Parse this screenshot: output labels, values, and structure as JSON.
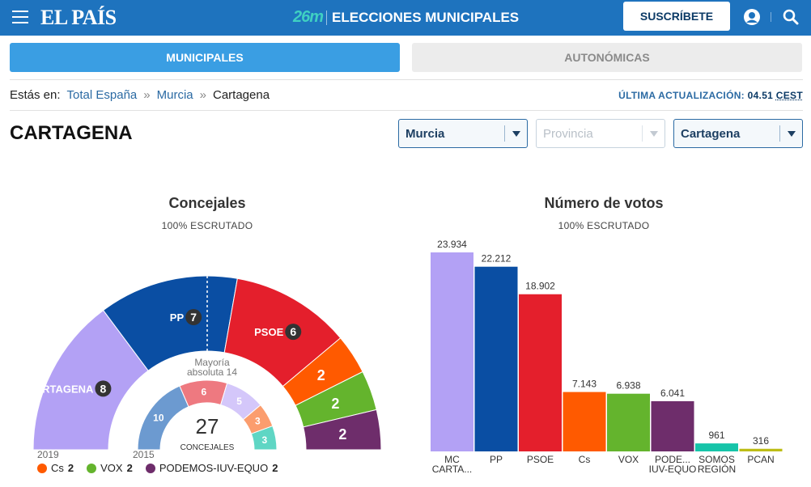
{
  "header": {
    "logo": "EL PAÍS",
    "brand_mark": "26m",
    "title": "ELECCIONES MUNICIPALES",
    "subscribe_label": "SUSCRÍBETE"
  },
  "tabs": [
    {
      "label": "MUNICIPALES",
      "active": true
    },
    {
      "label": "AUTONÓMICAS",
      "active": false
    }
  ],
  "breadcrumb": {
    "prefix": "Estás en:",
    "items": [
      "Total España",
      "Murcia",
      "Cartagena"
    ],
    "separator": "»"
  },
  "update": {
    "label": "ÚLTIMA ACTUALIZACIÓN:",
    "time": "04.51",
    "tz": "CEST"
  },
  "page_title": "CARTAGENA",
  "selects": [
    {
      "value": "Murcia",
      "disabled": false
    },
    {
      "value": "",
      "placeholder": "Provincia",
      "disabled": true
    },
    {
      "value": "Cartagena",
      "disabled": false
    }
  ],
  "concejales": {
    "title": "Concejales",
    "subtitle": "100% ESCRUTADO",
    "majority_line1": "Mayoría",
    "majority_line2": "absoluta 14",
    "total": "27",
    "total_label": "CONCEJALES",
    "year_outer": "2019",
    "year_inner": "2015"
  },
  "votos": {
    "title": "Número de votos",
    "subtitle": "100% ESCRUTADO"
  },
  "legend": [
    {
      "name": "Cs",
      "value": "2",
      "color": "#ff5a00"
    },
    {
      "name": "VOX",
      "value": "2",
      "color": "#64b42d"
    },
    {
      "name": "PODEMOS-IUV-EQUO",
      "value": "2",
      "color": "#6e2d6b"
    }
  ],
  "chart_data": [
    {
      "type": "pie",
      "subtype": "half-donut",
      "title": "Concejales",
      "series": [
        {
          "name": "2019",
          "slices": [
            {
              "party": "MC CARTAGENA",
              "seats": 8,
              "color": "#b3a1f5"
            },
            {
              "party": "PP",
              "seats": 7,
              "color": "#0a4ea3"
            },
            {
              "party": "PSOE",
              "seats": 6,
              "color": "#e41f2c"
            },
            {
              "party": "Cs",
              "seats": 2,
              "color": "#ff5a00"
            },
            {
              "party": "VOX",
              "seats": 2,
              "color": "#64b42d"
            },
            {
              "party": "PODEMOS-IUV-EQUO",
              "seats": 2,
              "color": "#6e2d6b"
            }
          ]
        },
        {
          "name": "2015",
          "slices": [
            {
              "party": "PP",
              "seats": 10,
              "color": "#6c9ad0"
            },
            {
              "party": "PSOE",
              "seats": 6,
              "color": "#ee7980"
            },
            {
              "party": "MC CARTAGENA",
              "seats": 5,
              "color": "#d4c7fa"
            },
            {
              "party": "Cs",
              "seats": 3,
              "color": "#fb9d6e"
            },
            {
              "party": "PODEMOS-IUV-EQUO",
              "seats": 3,
              "color": "#5fd6c4"
            }
          ]
        }
      ]
    },
    {
      "type": "bar",
      "title": "Número de votos",
      "categories": [
        "MC CARTA...",
        "PP",
        "PSOE",
        "Cs",
        "VOX",
        "PODE... IUV-EQUO",
        "SOMOS REGIÓN",
        "PCAN"
      ],
      "values": [
        23934,
        22212,
        18902,
        7143,
        6938,
        6041,
        961,
        316
      ],
      "value_labels": [
        "23.934",
        "22.212",
        "18.902",
        "7.143",
        "6.938",
        "6.041",
        "961",
        "316"
      ],
      "colors": [
        "#b3a1f5",
        "#0a4ea3",
        "#e41f2c",
        "#ff5a00",
        "#64b42d",
        "#6e2d6b",
        "#16c4a9",
        "#bdbd16"
      ],
      "ylim": [
        0,
        23934
      ]
    }
  ]
}
